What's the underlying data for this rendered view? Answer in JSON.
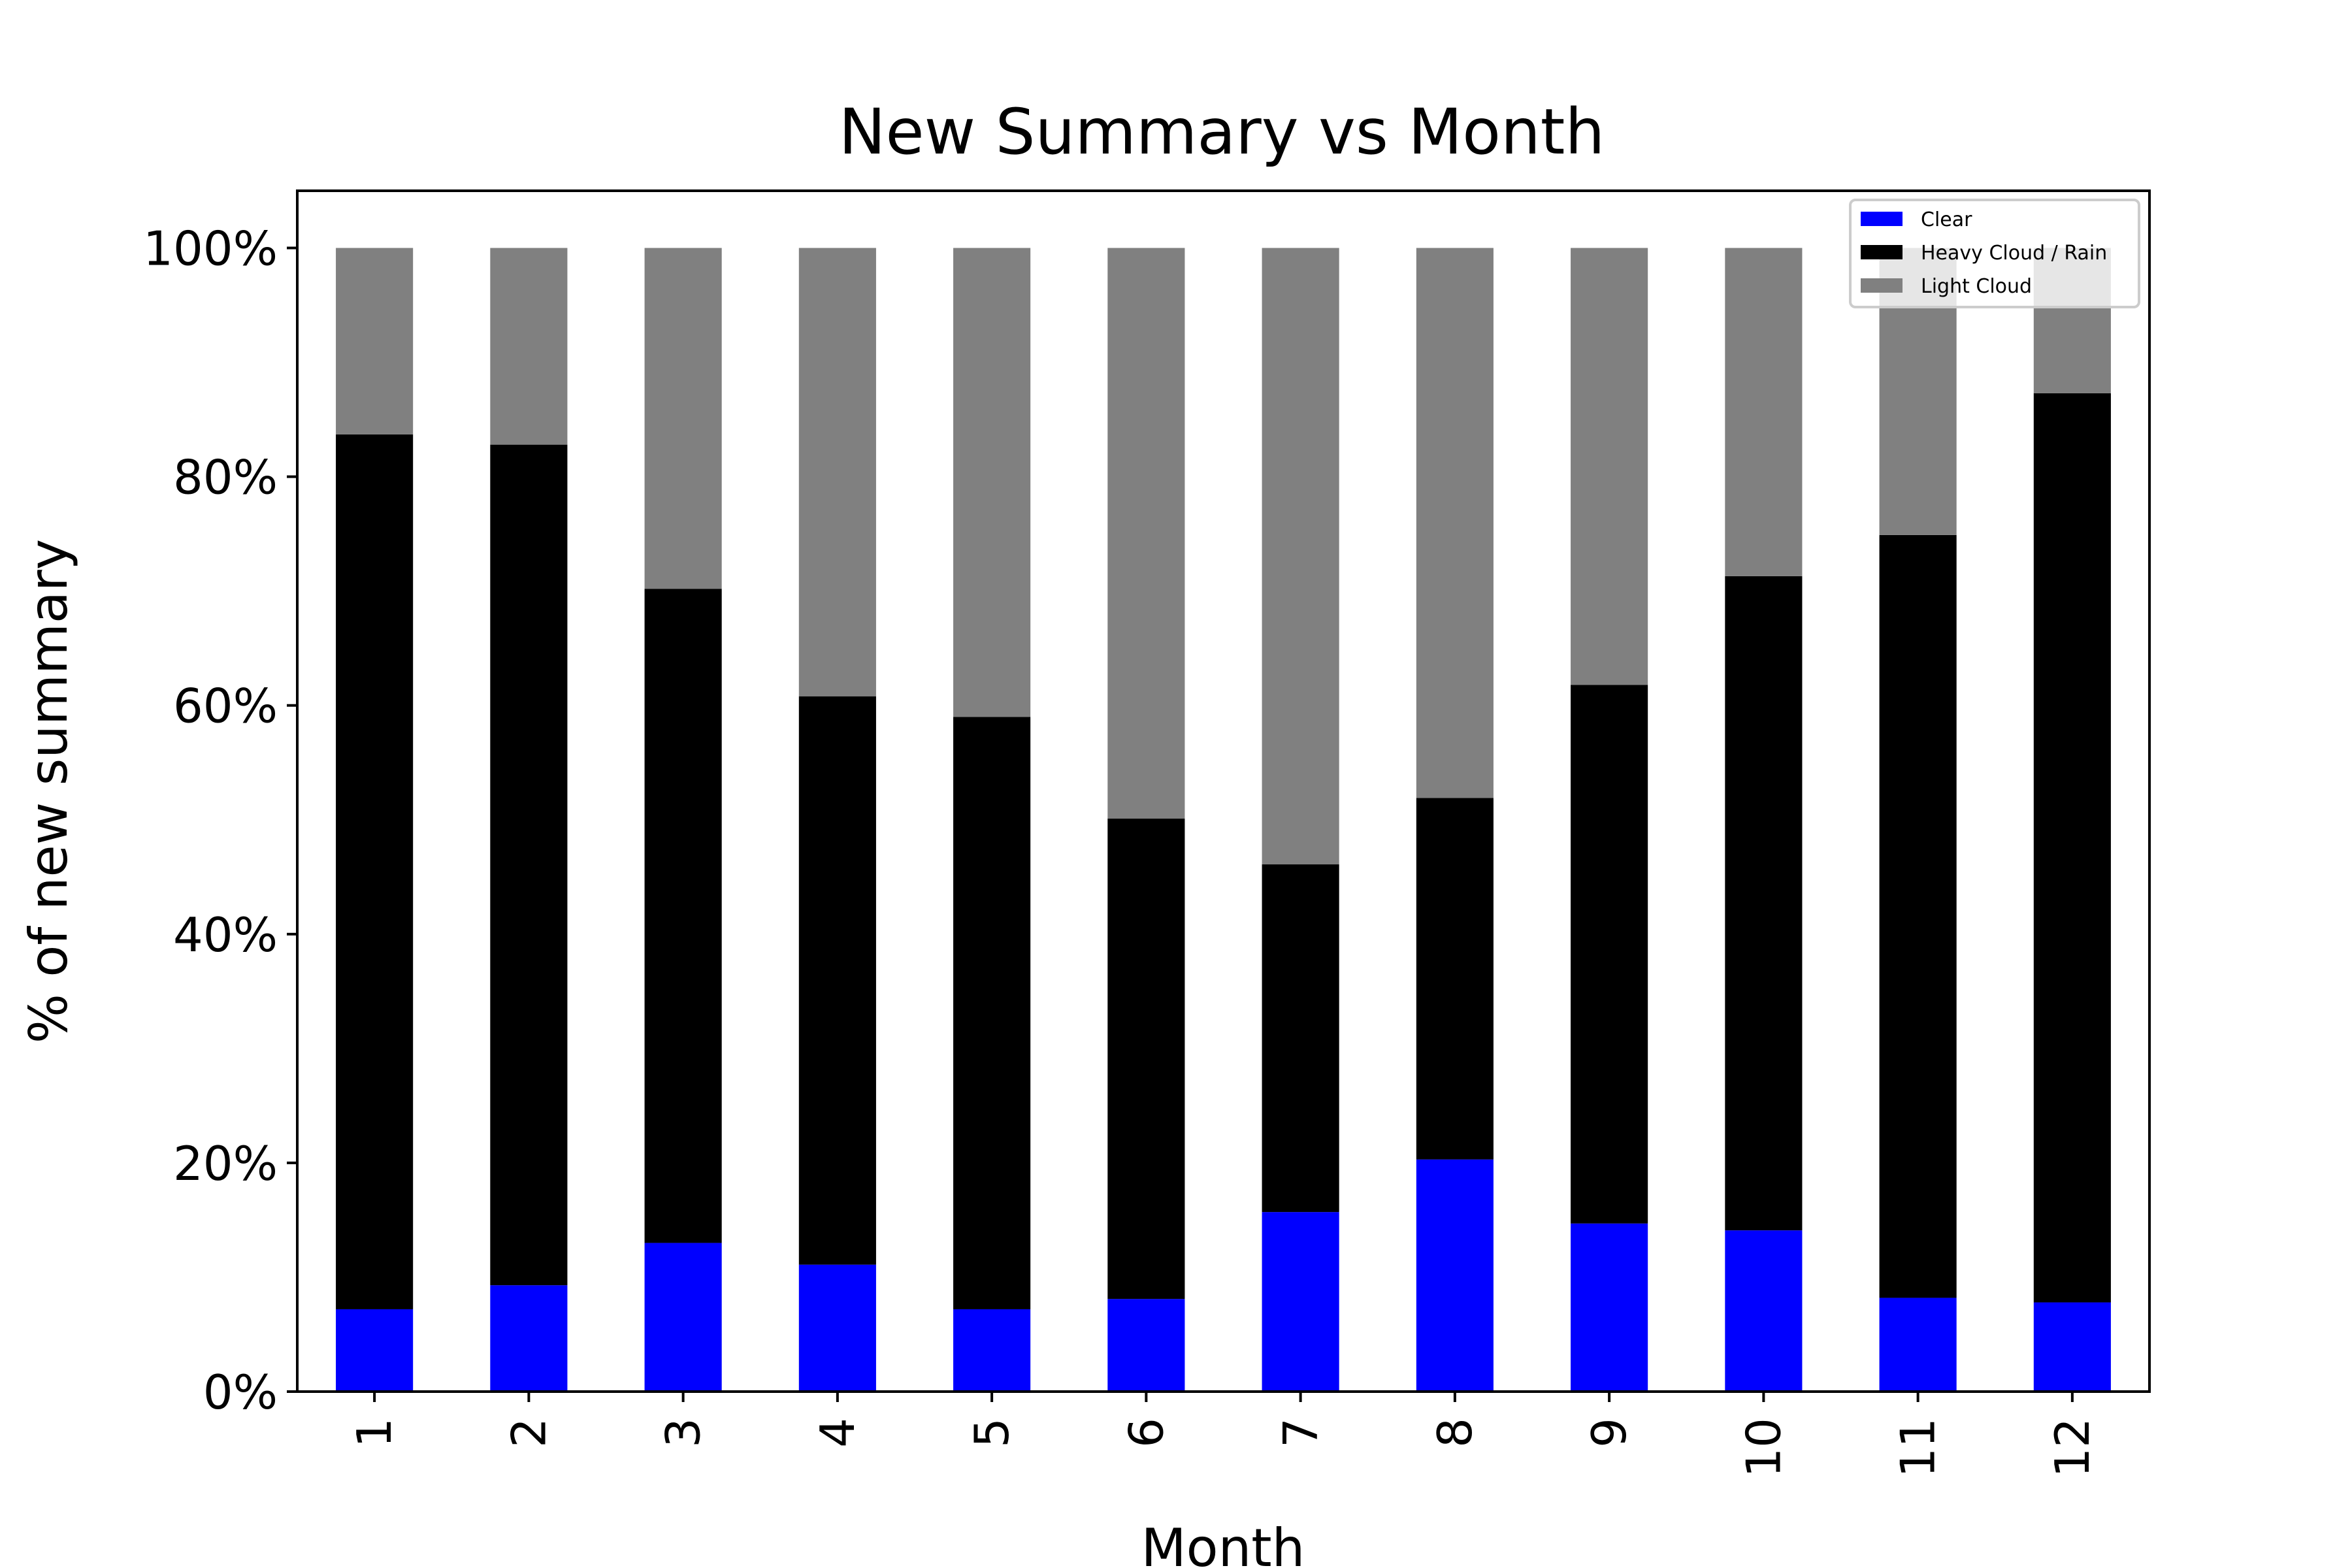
{
  "chart_data": {
    "type": "bar",
    "stacked": true,
    "title": "New Summary vs Month",
    "xlabel": "Month",
    "ylabel": "% of new summary",
    "ylim": [
      0,
      1.05
    ],
    "y_ticks": [
      "0%",
      "20%",
      "40%",
      "60%",
      "80%",
      "100%"
    ],
    "categories": [
      "1",
      "2",
      "3",
      "4",
      "5",
      "6",
      "7",
      "8",
      "9",
      "10",
      "11",
      "12"
    ],
    "series": [
      {
        "name": "Clear",
        "color": "#0000ff",
        "values": [
          0.072,
          0.093,
          0.13,
          0.111,
          0.072,
          0.081,
          0.157,
          0.203,
          0.147,
          0.141,
          0.082,
          0.078
        ]
      },
      {
        "name": "Heavy Cloud / Rain",
        "color": "#000000",
        "values": [
          0.765,
          0.735,
          0.572,
          0.497,
          0.518,
          0.42,
          0.304,
          0.316,
          0.471,
          0.572,
          0.667,
          0.795
        ]
      },
      {
        "name": "Light Cloud",
        "color": "#808080",
        "values": [
          0.163,
          0.172,
          0.298,
          0.392,
          0.41,
          0.499,
          0.539,
          0.481,
          0.382,
          0.287,
          0.251,
          0.127
        ]
      }
    ],
    "legend_position": "top-right",
    "grid": false
  }
}
